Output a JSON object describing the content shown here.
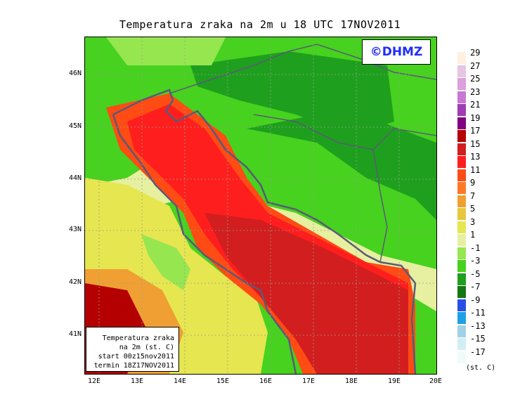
{
  "title": "Temperatura zraka na 2m u 18 UTC 17NOV2011",
  "copyright": "©DHMZ",
  "info_box": {
    "line1": "Temperatura zraka",
    "line2": "na 2m (st. C)",
    "line3": "start 00z15nov2011",
    "line4": "termin 18Z17NOV2011"
  },
  "lat_labels": [
    "46N",
    "45N",
    "44N",
    "43N",
    "42N",
    "41N"
  ],
  "lon_labels": [
    "12E",
    "13E",
    "14E",
    "15E",
    "16E",
    "17E",
    "18E",
    "19E",
    "20E"
  ],
  "legend": {
    "unit": "(st. C)",
    "items": [
      {
        "label": "29",
        "color": "#fff0e0"
      },
      {
        "label": "27",
        "color": "#e6c6e0"
      },
      {
        "label": "25",
        "color": "#dca0dc"
      },
      {
        "label": "23",
        "color": "#c878d2"
      },
      {
        "label": "21",
        "color": "#a03cb4"
      },
      {
        "label": "19",
        "color": "#820082"
      },
      {
        "label": "17",
        "color": "#b40000"
      },
      {
        "label": "15",
        "color": "#d21e1e"
      },
      {
        "label": "13",
        "color": "#ff1e1e"
      },
      {
        "label": "11",
        "color": "#ff4b14"
      },
      {
        "label": "9",
        "color": "#ff7828"
      },
      {
        "label": "7",
        "color": "#f0a032"
      },
      {
        "label": "5",
        "color": "#e6c83c"
      },
      {
        "label": "3",
        "color": "#e6e650"
      },
      {
        "label": "1",
        "color": "#e6f0a0"
      },
      {
        "label": "-1",
        "color": "#96e650"
      },
      {
        "label": "-3",
        "color": "#46d21e"
      },
      {
        "label": "-5",
        "color": "#1ea01e"
      },
      {
        "label": "-7",
        "color": "#147814"
      },
      {
        "label": "-9",
        "color": "#2850e6"
      },
      {
        "label": "-11",
        "color": "#1ea0e6"
      },
      {
        "label": "-13",
        "color": "#a0d2e6"
      },
      {
        "label": "-15",
        "color": "#d2eef4"
      },
      {
        "label": "-17",
        "color": "#f0fafa"
      }
    ]
  }
}
